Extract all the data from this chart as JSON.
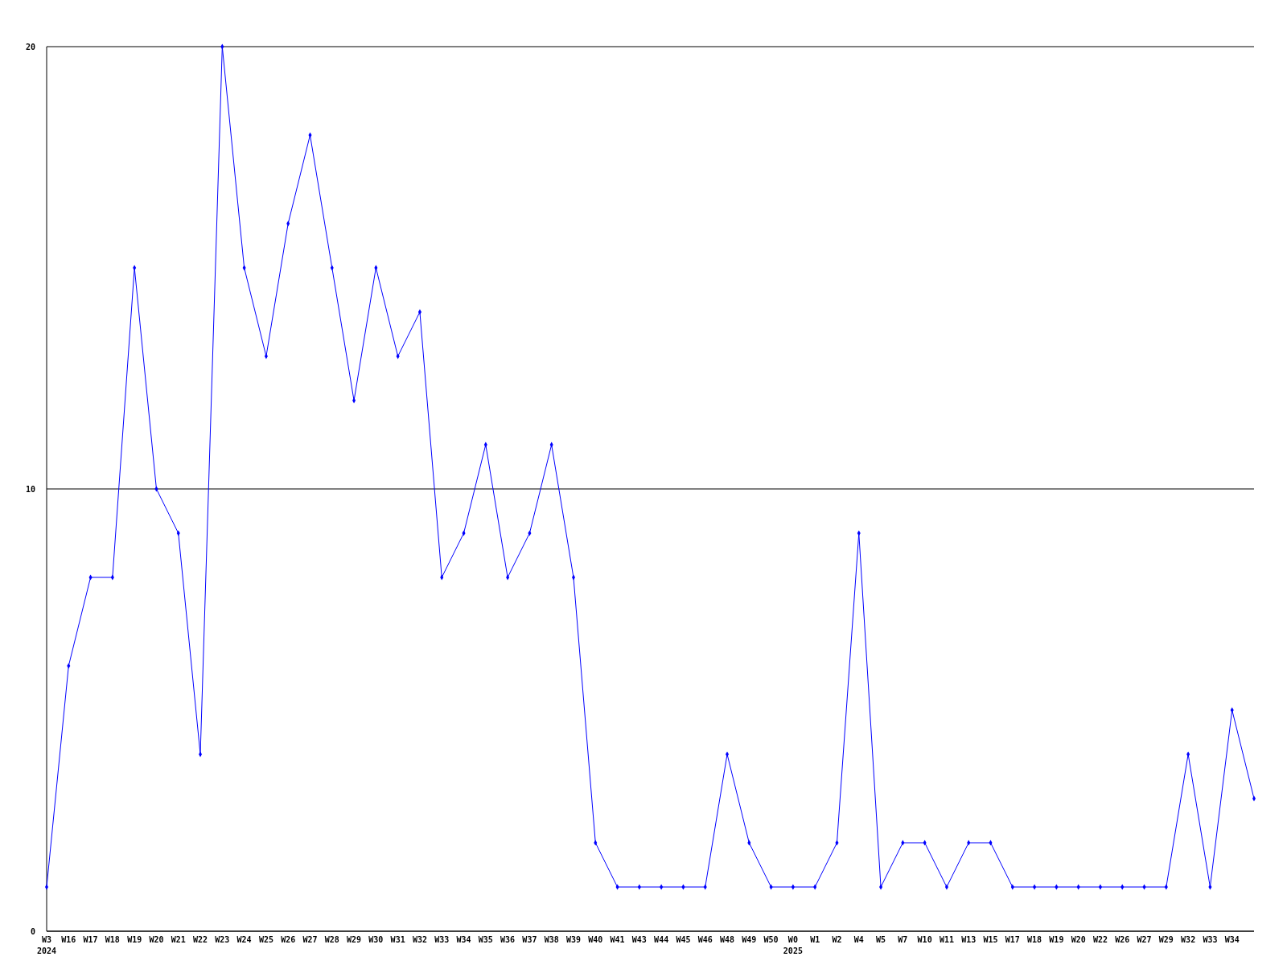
{
  "chart_data": {
    "type": "line",
    "categories": [
      "W3\n2024",
      "W16",
      "W17",
      "W18",
      "W19",
      "W20",
      "W21",
      "W22",
      "W23",
      "W24",
      "W25",
      "W26",
      "W27",
      "W28",
      "W29",
      "W30",
      "W31",
      "W32",
      "W33",
      "W34",
      "W35",
      "W36",
      "W37",
      "W38",
      "W39",
      "W40",
      "W41",
      "W43",
      "W44",
      "W45",
      "W46",
      "W48",
      "W49",
      "W50",
      "W0\n2025",
      "W1",
      "W2",
      "W4",
      "W5",
      "W7",
      "W10",
      "W11",
      "W13",
      "W15",
      "W17",
      "W18",
      "W19",
      "W20",
      "W22",
      "W26",
      "W27",
      "W29",
      "W32",
      "W33",
      "W34",
      null
    ],
    "series": [
      {
        "color": "#0000ff",
        "values": [
          1,
          6,
          8,
          8,
          15,
          10,
          9,
          4,
          20,
          15,
          13,
          16,
          18,
          15,
          12,
          15,
          13,
          14,
          8,
          9,
          11,
          8,
          9,
          11,
          8,
          2,
          1,
          1,
          1,
          1,
          1,
          4,
          2,
          1,
          1,
          1,
          2,
          9,
          1,
          2,
          2,
          1,
          2,
          2,
          1,
          1,
          1,
          1,
          1,
          1,
          1,
          1,
          4,
          1,
          5,
          3
        ]
      }
    ],
    "ylim": [
      0,
      20
    ],
    "yticks": [
      0,
      10,
      20
    ],
    "grid": "y",
    "marker": "diamond",
    "line_style": "solid"
  }
}
